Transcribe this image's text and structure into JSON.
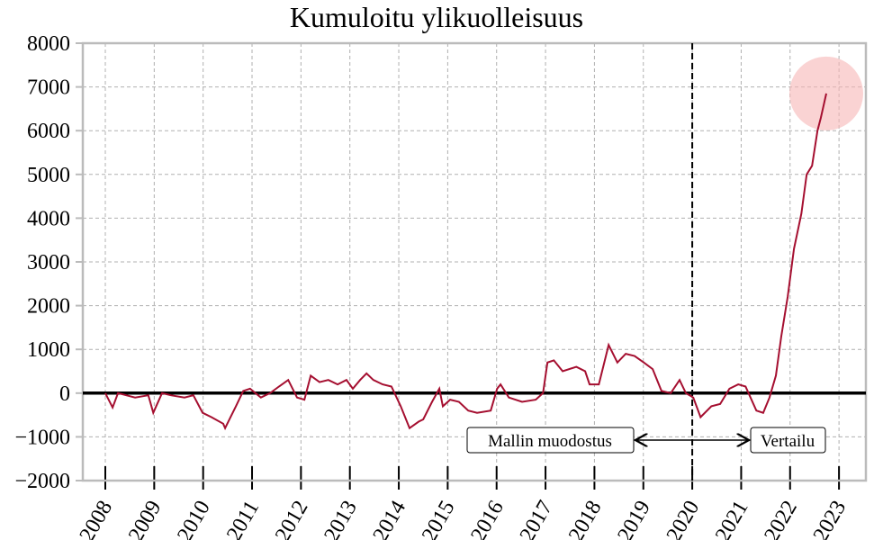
{
  "chart_data": {
    "type": "line",
    "title": "Kumuloitu ylikuolleisuus",
    "x": [
      2008.0,
      2008.15,
      2008.26,
      2008.61,
      2008.88,
      2008.98,
      2009.16,
      2009.34,
      2009.62,
      2009.8,
      2009.99,
      2010.17,
      2010.41,
      2010.45,
      2010.67,
      2010.82,
      2010.96,
      2011.18,
      2011.37,
      2011.55,
      2011.74,
      2011.92,
      2012.07,
      2012.2,
      2012.38,
      2012.56,
      2012.75,
      2012.93,
      2013.06,
      2013.21,
      2013.34,
      2013.48,
      2013.67,
      2013.85,
      2014.04,
      2014.22,
      2014.41,
      2014.5,
      2014.68,
      2014.83,
      2014.9,
      2015.05,
      2015.23,
      2015.42,
      2015.6,
      2015.88,
      2016.01,
      2016.08,
      2016.25,
      2016.52,
      2016.8,
      2016.95,
      2017.04,
      2017.17,
      2017.35,
      2017.63,
      2017.81,
      2017.9,
      2018.09,
      2018.29,
      2018.47,
      2018.64,
      2018.82,
      2019.01,
      2019.19,
      2019.37,
      2019.56,
      2019.74,
      2019.87,
      2020.02,
      2020.17,
      2020.39,
      2020.57,
      2020.76,
      2020.94,
      2021.09,
      2021.31,
      2021.45,
      2021.58,
      2021.71,
      2021.82,
      2021.95,
      2022.08,
      2022.23,
      2022.34,
      2022.45,
      2022.56,
      2022.63,
      2022.74
    ],
    "series": [
      {
        "color": "#a50f30",
        "values": [
          0,
          -330,
          0,
          -100,
          -50,
          -450,
          0,
          -50,
          -100,
          -50,
          -450,
          -550,
          -700,
          -800,
          -300,
          50,
          100,
          -100,
          0,
          150,
          300,
          -100,
          -150,
          400,
          250,
          300,
          200,
          300,
          100,
          300,
          450,
          300,
          200,
          150,
          -300,
          -800,
          -650,
          -600,
          -200,
          100,
          -300,
          -150,
          -200,
          -400,
          -450,
          -400,
          100,
          200,
          -100,
          -200,
          -150,
          0,
          700,
          750,
          500,
          600,
          500,
          200,
          200,
          1100,
          700,
          900,
          850,
          700,
          550,
          50,
          0,
          300,
          0,
          -100,
          -550,
          -300,
          -250,
          100,
          200,
          150,
          -400,
          -450,
          -100,
          400,
          1300,
          2200,
          3300,
          4100,
          5000,
          5200,
          6000,
          6300,
          6850
        ]
      }
    ],
    "xlim": [
      2007.54,
      2023.55
    ],
    "ylim": [
      -2000,
      8000
    ],
    "xticks": [
      2008,
      2009,
      2010,
      2011,
      2012,
      2013,
      2014,
      2015,
      2016,
      2017,
      2018,
      2019,
      2020,
      2021,
      2022,
      2023
    ],
    "yticks": [
      {
        "value": -2000,
        "label": "−2000"
      },
      {
        "value": -1000,
        "label": "−1000"
      },
      0,
      1000,
      2000,
      3000,
      4000,
      5000,
      6000,
      7000,
      8000
    ],
    "grid": true,
    "vline": 2020,
    "annotations": [
      "Mallin muodostus",
      "Vertailu"
    ]
  }
}
